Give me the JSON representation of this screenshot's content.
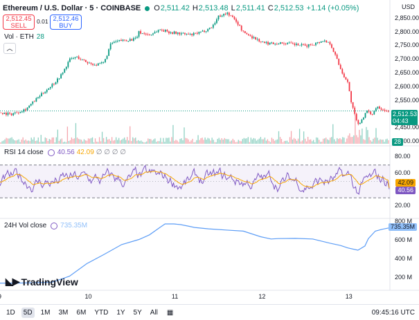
{
  "header": {
    "symbol": "Ethereum / U.S. Dollar · 5 · COINBASE",
    "o_label": "O",
    "o_val": "2,511.42",
    "h_label": "H",
    "h_val": "2,513.48",
    "l_label": "L",
    "l_val": "2,511.41",
    "c_label": "C",
    "c_val": "2,512.53",
    "change": "+1.14 (+0.05%)",
    "up_color": "#089981",
    "down_color": "#f23645"
  },
  "trade": {
    "sell_price": "2,512.45",
    "sell_label": "SELL",
    "spread": "0.01",
    "buy_price": "2,512.46",
    "buy_label": "BUY"
  },
  "volume": {
    "label": "Vol · ETH",
    "value": "28"
  },
  "rsi": {
    "label": "RSI 14 close",
    "v1": "40.56",
    "v2": "42.09",
    "v3": "∅ ∅ ∅ ∅"
  },
  "vol24": {
    "label": "24H Vol close",
    "value": "735.35M"
  },
  "axes": {
    "currency": "USD",
    "price_ticks": [
      "2,850.00",
      "2,800.00",
      "2,750.00",
      "2,700.00",
      "2,650.00",
      "2,600.00",
      "2,550.00",
      "2,450.00",
      "2,400.00"
    ],
    "price_tag": "2,512.53",
    "countdown": "04:43",
    "vol_tag": "28",
    "rsi_ticks": [
      "80.00",
      "60.00",
      "20.00"
    ],
    "rsi_tag1": "42.09",
    "rsi_tag2": "40.56",
    "vol24_ticks": [
      "800 M",
      "600 M",
      "400 M",
      "200 M"
    ],
    "vol24_tag": "735.35M",
    "x_ticks": [
      "9",
      "10",
      "11",
      "12",
      "13"
    ]
  },
  "logo": {
    "text": "TradingView"
  },
  "bottom": {
    "timeframes": [
      "1D",
      "5D",
      "1M",
      "3M",
      "6M",
      "YTD",
      "1Y",
      "5Y",
      "All"
    ],
    "active": "5D",
    "time": "09:45:16 UTC"
  },
  "chart_data": {
    "type": "line",
    "x": [
      "9",
      "10",
      "11",
      "12",
      "13"
    ],
    "price_axis": "USD",
    "price_ylim": [
      2400,
      2880
    ],
    "price_close_path": [
      [
        0.0,
        2507
      ],
      [
        0.3,
        2500
      ],
      [
        0.5,
        2508
      ],
      [
        0.75,
        2520
      ],
      [
        1.0,
        2550
      ],
      [
        1.3,
        2585
      ],
      [
        1.6,
        2620
      ],
      [
        1.8,
        2650
      ],
      [
        2.0,
        2700
      ],
      [
        2.2,
        2710
      ],
      [
        2.5,
        2690
      ],
      [
        2.8,
        2680
      ],
      [
        3.0,
        2690
      ],
      [
        3.2,
        2760
      ],
      [
        3.5,
        2770
      ],
      [
        3.9,
        2775
      ],
      [
        4.0,
        2800
      ],
      [
        4.3,
        2790
      ],
      [
        4.6,
        2810
      ],
      [
        4.9,
        2800
      ],
      [
        5.2,
        2795
      ],
      [
        5.5,
        2790
      ],
      [
        5.8,
        2800
      ],
      [
        6.1,
        2820
      ],
      [
        6.3,
        2860
      ],
      [
        6.55,
        2870
      ],
      [
        6.8,
        2840
      ],
      [
        7.0,
        2800
      ],
      [
        7.3,
        2780
      ],
      [
        7.6,
        2760
      ],
      [
        7.9,
        2760
      ],
      [
        8.2,
        2760
      ],
      [
        8.5,
        2755
      ],
      [
        8.8,
        2750
      ],
      [
        9.1,
        2760
      ],
      [
        9.3,
        2770
      ],
      [
        9.5,
        2760
      ],
      [
        9.7,
        2700
      ],
      [
        9.85,
        2650
      ],
      [
        10.0,
        2620
      ],
      [
        10.1,
        2550
      ],
      [
        10.2,
        2500
      ],
      [
        10.3,
        2460
      ],
      [
        10.4,
        2480
      ],
      [
        10.55,
        2510
      ],
      [
        10.7,
        2500
      ],
      [
        10.85,
        2530
      ],
      [
        11.0,
        2520
      ],
      [
        11.2,
        2510
      ]
    ],
    "price_last": 2512.53,
    "rsi_ylim": [
      10,
      90
    ],
    "rsi_band": [
      30,
      70
    ],
    "rsi_last": 40.56,
    "rsi_ma_last": 42.09,
    "vol24_ylim": [
      100,
      800
    ],
    "vol24_path": [
      [
        0.0,
        140
      ],
      [
        0.5,
        140
      ],
      [
        1.0,
        145
      ],
      [
        1.5,
        150
      ],
      [
        2.0,
        215
      ],
      [
        2.5,
        350
      ],
      [
        3.0,
        450
      ],
      [
        3.5,
        555
      ],
      [
        4.0,
        610
      ],
      [
        4.3,
        660
      ],
      [
        4.6,
        740
      ],
      [
        4.75,
        778
      ],
      [
        5.0,
        778
      ],
      [
        5.2,
        770
      ],
      [
        5.4,
        755
      ],
      [
        5.6,
        740
      ],
      [
        6.0,
        725
      ],
      [
        6.5,
        712
      ],
      [
        7.0,
        700
      ],
      [
        7.5,
        640
      ],
      [
        7.8,
        615
      ],
      [
        8.0,
        620
      ],
      [
        8.5,
        622
      ],
      [
        9.0,
        615
      ],
      [
        9.5,
        570
      ],
      [
        9.8,
        545
      ],
      [
        10.0,
        520
      ],
      [
        10.3,
        495
      ],
      [
        10.5,
        540
      ],
      [
        10.6,
        620
      ],
      [
        10.8,
        700
      ],
      [
        11.0,
        720
      ],
      [
        11.2,
        735
      ]
    ],
    "volume_last": 28
  }
}
